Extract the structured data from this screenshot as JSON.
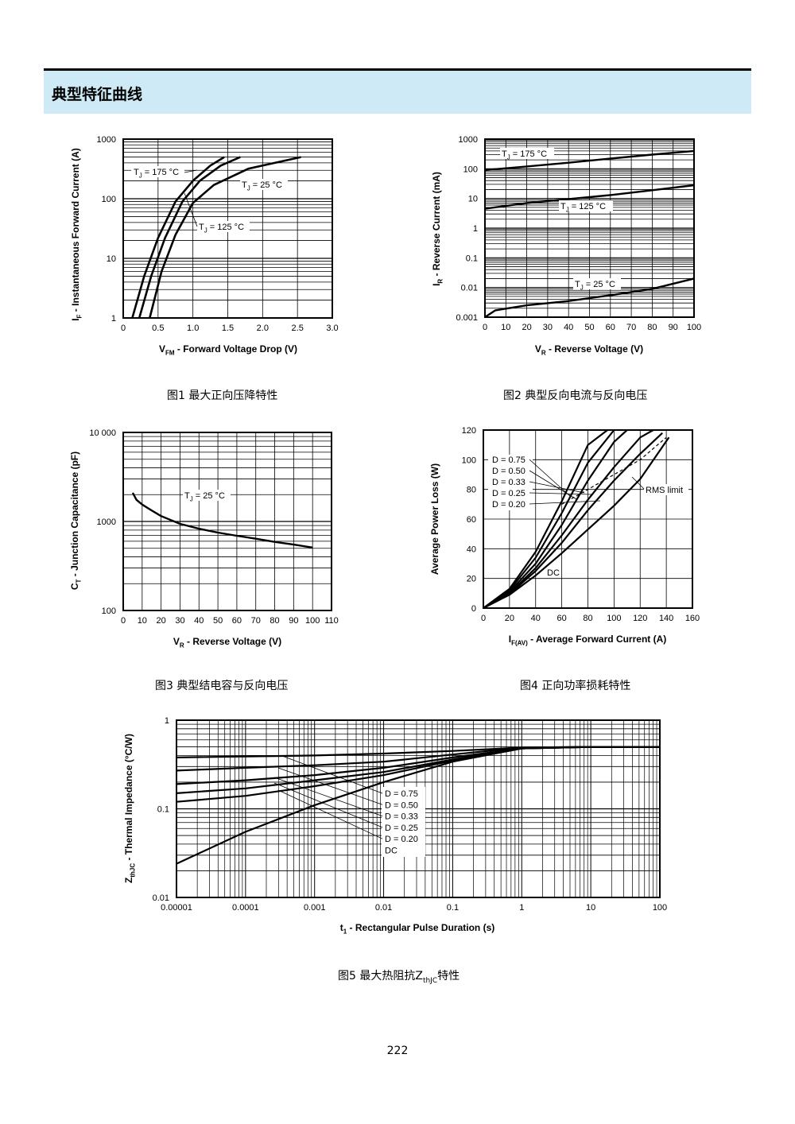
{
  "section_title": "典型特征曲线",
  "page_number": "222",
  "figures": [
    {
      "caption": "图1  最大正向压降特性"
    },
    {
      "caption": "图2  典型反向电流与反向电压"
    },
    {
      "caption": "图3  典型结电容与反向电压"
    },
    {
      "caption": "图4  正向功率损耗特性"
    },
    {
      "caption_prefix": "图5  最大热阻抗Z",
      "caption_sub": "thJC",
      "caption_suffix": "特性"
    }
  ],
  "chart_data": [
    {
      "type": "line",
      "ylog": true,
      "xlim": [
        0,
        3.0
      ],
      "ylim": [
        1,
        1000
      ],
      "x_ticks": [
        "0",
        "0.5",
        "1.0",
        "1.5",
        "2.0",
        "2.5",
        "3.0"
      ],
      "y_ticks": [
        "1",
        "10",
        "100",
        "1000"
      ],
      "xlabel": "V",
      "xlabel_sub": "FM",
      "xlabel_rest": " - Forward Voltage Drop (V)",
      "ylabel": "I",
      "ylabel_sub": "F",
      "ylabel_rest": " - Instantaneous Forward Current (A)",
      "series": [
        {
          "name": "TJ = 175 °C",
          "x": [
            0.13,
            0.3,
            0.5,
            0.75,
            1.0,
            1.25,
            1.45
          ],
          "y": [
            1,
            5,
            22,
            90,
            200,
            360,
            500
          ]
        },
        {
          "name": "TJ = 125 °C",
          "x": [
            0.23,
            0.4,
            0.6,
            0.85,
            1.1,
            1.4,
            1.68
          ],
          "y": [
            1,
            5,
            22,
            90,
            200,
            360,
            500
          ]
        },
        {
          "name": "TJ = 25 °C",
          "x": [
            0.38,
            0.55,
            0.75,
            1.0,
            1.3,
            1.8,
            2.55
          ],
          "y": [
            1,
            6,
            25,
            85,
            170,
            320,
            500
          ]
        }
      ],
      "annotations": [
        {
          "main": "T",
          "sub": "J",
          "rest": " = 175 °C"
        },
        {
          "main": "T",
          "sub": "J",
          "rest": " = 25 °C"
        },
        {
          "main": "T",
          "sub": "J",
          "rest": " = 125 °C"
        }
      ]
    },
    {
      "type": "line",
      "ylog": true,
      "xlim": [
        0,
        100
      ],
      "ylim": [
        0.001,
        1000
      ],
      "x_ticks": [
        "0",
        "10",
        "20",
        "30",
        "40",
        "50",
        "60",
        "70",
        "80",
        "90",
        "100"
      ],
      "y_ticks": [
        "0.001",
        "0.01",
        "0.1",
        "1",
        "10",
        "100",
        "1000"
      ],
      "xlabel": "V",
      "xlabel_sub": "R",
      "xlabel_rest": " - Reverse Voltage (V)",
      "ylabel": "I",
      "ylabel_sub": "R",
      "ylabel_rest": " - Reverse Current (mA)",
      "series": [
        {
          "name": "TJ = 175 °C",
          "x": [
            0,
            20,
            40,
            60,
            80,
            100
          ],
          "y": [
            90,
            120,
            160,
            220,
            300,
            400
          ]
        },
        {
          "name": "TJ = 125 °C",
          "x": [
            0,
            20,
            40,
            60,
            80,
            100
          ],
          "y": [
            4.5,
            7,
            9.5,
            13,
            19,
            28
          ]
        },
        {
          "name": "TJ = 25 °C",
          "x": [
            0,
            5,
            20,
            40,
            60,
            80,
            100
          ],
          "y": [
            0.001,
            0.0017,
            0.0025,
            0.0035,
            0.0055,
            0.009,
            0.02
          ]
        }
      ],
      "annotations": [
        {
          "main": "T",
          "sub": "J",
          "rest": " = 175 °C"
        },
        {
          "main": "T",
          "sub": "J",
          "rest": " = 125 °C"
        },
        {
          "main": "T",
          "sub": "J",
          "rest": " = 25 °C"
        }
      ]
    },
    {
      "type": "line",
      "ylog": true,
      "xlim": [
        0,
        110
      ],
      "ylim": [
        100,
        10000
      ],
      "x_ticks": [
        "0",
        "10",
        "20",
        "30",
        "40",
        "50",
        "60",
        "70",
        "80",
        "90",
        "100",
        "110"
      ],
      "y_ticks": [
        "100",
        "1000",
        "10 000"
      ],
      "xlabel": "V",
      "xlabel_sub": "R",
      "xlabel_rest": " - Reverse Voltage (V)",
      "ylabel": "C",
      "ylabel_sub": "T",
      "ylabel_rest": " - Junction Capacitance (pF)",
      "series": [
        {
          "name": "TJ = 25 °C",
          "x": [
            5,
            7,
            10,
            15,
            20,
            30,
            40,
            50,
            60,
            70,
            80,
            90,
            100
          ],
          "y": [
            2100,
            1750,
            1550,
            1330,
            1150,
            940,
            830,
            750,
            690,
            640,
            590,
            550,
            510
          ]
        }
      ],
      "annotations": [
        {
          "main": "T",
          "sub": "J",
          "rest": " = 25 °C"
        }
      ]
    },
    {
      "type": "line",
      "xlim": [
        0,
        160
      ],
      "ylim": [
        0,
        120
      ],
      "x_ticks": [
        "0",
        "20",
        "40",
        "60",
        "80",
        "100",
        "120",
        "140",
        "160"
      ],
      "y_ticks": [
        "0",
        "20",
        "40",
        "60",
        "80",
        "100",
        "120"
      ],
      "xlabel": "I",
      "xlabel_sub": "F(AV)",
      "xlabel_rest": " - Average Forward Current (A)",
      "ylabel": "Average Power Loss (W)",
      "series": [
        {
          "name": "D = 0.75",
          "x": [
            0,
            20,
            40,
            60,
            80,
            95
          ],
          "y": [
            0,
            13,
            38,
            72,
            110,
            120
          ]
        },
        {
          "name": "D = 0.50",
          "x": [
            0,
            20,
            40,
            60,
            80,
            100
          ],
          "y": [
            0,
            12,
            34,
            64,
            98,
            120
          ]
        },
        {
          "name": "D = 0.33",
          "x": [
            0,
            20,
            40,
            60,
            80,
            100,
            110
          ],
          "y": [
            0,
            11,
            30,
            56,
            86,
            112,
            120
          ]
        },
        {
          "name": "D = 0.25",
          "x": [
            0,
            20,
            40,
            60,
            80,
            100,
            120,
            130
          ],
          "y": [
            0,
            10,
            27,
            49,
            73,
            95,
            115,
            120
          ]
        },
        {
          "name": "D = 0.20",
          "x": [
            0,
            20,
            40,
            60,
            80,
            100,
            120,
            137
          ],
          "y": [
            0,
            9.5,
            25,
            44,
            66,
            86,
            104,
            118
          ]
        },
        {
          "name": "DC",
          "x": [
            0,
            20,
            40,
            60,
            80,
            100,
            120,
            142
          ],
          "y": [
            0,
            9,
            22,
            37,
            53,
            69,
            87,
            115
          ]
        },
        {
          "name": "RMS limit",
          "x": [
            60,
            80,
            100,
            120,
            140
          ],
          "y": [
            70,
            80,
            90,
            100,
            115
          ]
        }
      ],
      "annotations": [
        {
          "text": "D = 0.75"
        },
        {
          "text": "D = 0.50"
        },
        {
          "text": "D = 0.33"
        },
        {
          "text": "D = 0.25"
        },
        {
          "text": "D = 0.20"
        },
        {
          "text": "RMS limit"
        },
        {
          "text": "DC"
        }
      ]
    },
    {
      "type": "line",
      "xlog": true,
      "ylog": true,
      "xlim": [
        1e-05,
        100
      ],
      "ylim": [
        0.01,
        1
      ],
      "x_ticks": [
        "0.00001",
        "0.0001",
        "0.001",
        "0.01",
        "0.1",
        "1",
        "10",
        "100"
      ],
      "y_ticks": [
        "0.01",
        "0.1",
        "1"
      ],
      "xlabel": "t",
      "xlabel_sub": "1",
      "xlabel_rest": " - Rectangular Pulse Duration (s)",
      "ylabel": "Z",
      "ylabel_sub": "thJC",
      "ylabel_rest": " - Thermal Impedance (°C/W)",
      "series": [
        {
          "name": "D = 0.75",
          "x": [
            1e-05,
            0.0001,
            0.001,
            0.01,
            0.1,
            1,
            10,
            100
          ],
          "y": [
            0.38,
            0.39,
            0.4,
            0.42,
            0.45,
            0.49,
            0.5,
            0.5
          ]
        },
        {
          "name": "D = 0.50",
          "x": [
            1e-05,
            0.0001,
            0.001,
            0.01,
            0.1,
            1,
            10,
            100
          ],
          "y": [
            0.27,
            0.29,
            0.31,
            0.34,
            0.41,
            0.49,
            0.5,
            0.5
          ]
        },
        {
          "name": "D = 0.33",
          "x": [
            1e-05,
            0.0001,
            0.001,
            0.01,
            0.1,
            1,
            10,
            100
          ],
          "y": [
            0.19,
            0.21,
            0.24,
            0.29,
            0.38,
            0.48,
            0.5,
            0.5
          ]
        },
        {
          "name": "D = 0.25",
          "x": [
            1e-05,
            0.0001,
            0.001,
            0.01,
            0.1,
            1,
            10,
            100
          ],
          "y": [
            0.15,
            0.17,
            0.21,
            0.26,
            0.36,
            0.48,
            0.5,
            0.5
          ]
        },
        {
          "name": "D = 0.20",
          "x": [
            1e-05,
            0.0001,
            0.001,
            0.01,
            0.1,
            1,
            10,
            100
          ],
          "y": [
            0.12,
            0.14,
            0.18,
            0.24,
            0.35,
            0.48,
            0.5,
            0.5
          ]
        },
        {
          "name": "DC",
          "x": [
            1e-05,
            0.0001,
            0.001,
            0.01,
            0.1,
            1,
            10,
            100
          ],
          "y": [
            0.024,
            0.055,
            0.11,
            0.2,
            0.34,
            0.48,
            0.5,
            0.5
          ]
        }
      ],
      "annotations": [
        {
          "text": "D = 0.75"
        },
        {
          "text": "D = 0.50"
        },
        {
          "text": "D = 0.33"
        },
        {
          "text": "D = 0.25"
        },
        {
          "text": "D = 0.20"
        },
        {
          "text": "DC"
        }
      ]
    }
  ]
}
